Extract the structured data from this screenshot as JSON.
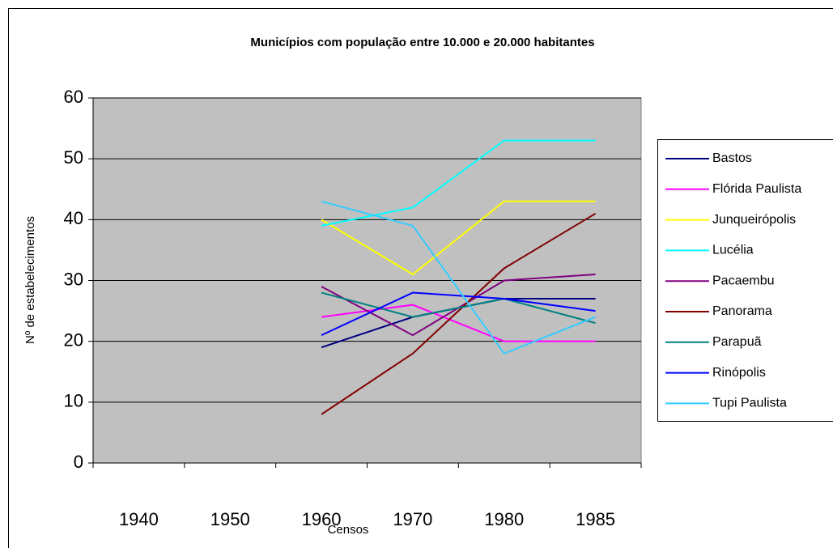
{
  "chart_data": {
    "type": "line",
    "title": "Municípios com população entre 10.000 e 20.000 habitantes",
    "x_label": "Censos",
    "y_label": "Nº de estabelecimentos",
    "categories": [
      "1940",
      "1950",
      "1960",
      "1970",
      "1980",
      "1985"
    ],
    "series": [
      {
        "name": "Bastos",
        "color": "#000080",
        "values": [
          null,
          null,
          19,
          24,
          27,
          27
        ]
      },
      {
        "name": "Flórida Paulista",
        "color": "#ff00ff",
        "values": [
          null,
          null,
          24,
          26,
          20,
          20
        ]
      },
      {
        "name": "Junqueirópolis",
        "color": "#ffff00",
        "values": [
          null,
          null,
          40,
          31,
          43,
          43
        ]
      },
      {
        "name": "Lucélia",
        "color": "#00ffff",
        "values": [
          null,
          null,
          39,
          42,
          53,
          53
        ]
      },
      {
        "name": "Pacaembu",
        "color": "#800080",
        "values": [
          null,
          null,
          29,
          21,
          30,
          31
        ]
      },
      {
        "name": "Panorama",
        "color": "#800000",
        "values": [
          null,
          null,
          8,
          18,
          32,
          41
        ]
      },
      {
        "name": "Parapuã",
        "color": "#008080",
        "values": [
          null,
          null,
          28,
          24,
          27,
          23
        ]
      },
      {
        "name": "Rinópolis",
        "color": "#0000ff",
        "values": [
          null,
          null,
          21,
          28,
          27,
          25
        ]
      },
      {
        "name": "Tupi Paulista",
        "color": "#33ccff",
        "values": [
          null,
          null,
          43,
          39,
          18,
          24
        ]
      }
    ],
    "ylim": [
      0,
      60
    ],
    "yticks": [
      0,
      10,
      20,
      30,
      40,
      50,
      60
    ],
    "grid": true,
    "legend": "right",
    "plot_background": "#c0c0c0"
  }
}
